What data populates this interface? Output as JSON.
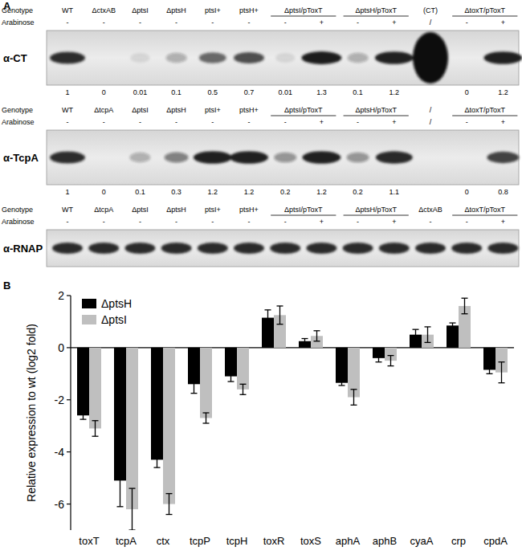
{
  "panel_a": {
    "label": "A",
    "blots": [
      {
        "antibody": "α-CT",
        "genotype_label": "Genotype",
        "arabinose_label": "Arabinose",
        "genotypes": [
          {
            "label": "WT",
            "lanes": 1
          },
          {
            "label": "ΔctxAB",
            "lanes": 1
          },
          {
            "label": "ΔptsI",
            "lanes": 1
          },
          {
            "label": "ΔptsH",
            "lanes": 1
          },
          {
            "label": "ptsI+",
            "lanes": 1
          },
          {
            "label": "ptsH+",
            "lanes": 1
          },
          {
            "label": "ΔptsI/pToxT",
            "lanes": 2
          },
          {
            "label": "ΔptsH/pToxT",
            "lanes": 2
          },
          {
            "label": "(CT)",
            "lanes": 1
          },
          {
            "label": "ΔtoxT/pToxT",
            "lanes": 2
          }
        ],
        "arabinose": [
          "-",
          "-",
          "-",
          "-",
          "-",
          "-",
          "-",
          "+",
          "-",
          "+",
          "/",
          "-",
          "+"
        ],
        "quantification": [
          1,
          0,
          0.01,
          0.1,
          0.5,
          0.7,
          0.01,
          1.3,
          0.1,
          1.2,
          null,
          0,
          1.2
        ]
      },
      {
        "antibody": "α-TcpA",
        "genotype_label": "Genotype",
        "arabinose_label": "Arabinose",
        "genotypes": [
          {
            "label": "WT",
            "lanes": 1
          },
          {
            "label": "ΔtcpA",
            "lanes": 1
          },
          {
            "label": "ΔptsI",
            "lanes": 1
          },
          {
            "label": "ΔptsH",
            "lanes": 1
          },
          {
            "label": "ptsI+",
            "lanes": 1
          },
          {
            "label": "ptsH+",
            "lanes": 1
          },
          {
            "label": "ΔptsI/pToxT",
            "lanes": 2
          },
          {
            "label": "ΔptsH/pToxT",
            "lanes": 2
          },
          {
            "label": "/",
            "lanes": 1
          },
          {
            "label": "ΔtoxT/pToxT",
            "lanes": 2
          }
        ],
        "arabinose": [
          "-",
          "-",
          "-",
          "-",
          "-",
          "-",
          "-",
          "+",
          "-",
          "+",
          "/",
          "-",
          "+"
        ],
        "quantification": [
          1,
          0,
          0.1,
          0.3,
          1.2,
          1.2,
          0.2,
          1.2,
          0.2,
          1.1,
          null,
          0,
          0.8
        ]
      },
      {
        "antibody": "α-RNAP",
        "genotype_label": "Genotype",
        "arabinose_label": "Arabinose",
        "genotypes": [
          {
            "label": "WT",
            "lanes": 1
          },
          {
            "label": "ΔtcpA",
            "lanes": 1
          },
          {
            "label": "ΔptsI",
            "lanes": 1
          },
          {
            "label": "ΔptsH",
            "lanes": 1
          },
          {
            "label": "ptsI+",
            "lanes": 1
          },
          {
            "label": "ptsH+",
            "lanes": 1
          },
          {
            "label": "ΔptsI/pToxT",
            "lanes": 2
          },
          {
            "label": "ΔptsH/pToxT",
            "lanes": 2
          },
          {
            "label": "ΔctxAB",
            "lanes": 1
          },
          {
            "label": "ΔtoxT/pToxT",
            "lanes": 2
          }
        ],
        "arabinose": [
          "-",
          "-",
          "-",
          "-",
          "-",
          "-",
          "-",
          "+",
          "-",
          "+",
          "-",
          "-",
          "+"
        ]
      }
    ]
  },
  "chart_data": {
    "type": "bar",
    "title": "B",
    "y_label": "Relative expression to wt (log2 fold)",
    "categories": [
      "toxT",
      "tcpA",
      "ctx",
      "tcpP",
      "tcpH",
      "toxR",
      "toxS",
      "aphA",
      "aphB",
      "cyaA",
      "crp",
      "cpdA"
    ],
    "series": [
      {
        "name": "ΔptsH",
        "color": "#000000",
        "values": [
          -2.6,
          -5.1,
          -4.3,
          -1.4,
          -1.1,
          1.15,
          0.25,
          -1.35,
          -0.4,
          0.5,
          0.85,
          -0.85
        ],
        "errors": [
          0.15,
          1.0,
          0.3,
          0.35,
          0.2,
          0.3,
          0.1,
          0.1,
          0.15,
          0.2,
          0.1,
          0.15
        ]
      },
      {
        "name": "ΔptsI",
        "color": "#bfbfbf",
        "values": [
          -3.1,
          -6.2,
          -6.0,
          -2.7,
          -1.6,
          1.25,
          0.45,
          -1.9,
          -0.5,
          0.5,
          1.6,
          -0.95
        ],
        "errors": [
          0.3,
          0.8,
          0.4,
          0.2,
          0.2,
          0.35,
          0.2,
          0.3,
          0.2,
          0.3,
          0.3,
          0.4
        ]
      }
    ],
    "ylim": [
      -7,
      2
    ],
    "yticks": [
      -6,
      -4,
      -2,
      0,
      2
    ],
    "grid": false,
    "legend": "upper left"
  }
}
